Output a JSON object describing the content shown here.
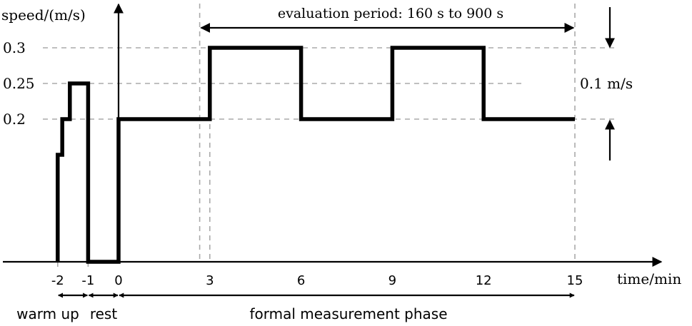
{
  "chart_data": {
    "type": "line",
    "step": true,
    "xlabel": "time/min",
    "ylabel": "speed/(m/s)",
    "xlim": [
      -3.5,
      16.5
    ],
    "ylim": [
      0,
      0.3
    ],
    "x_ticks": [
      -2,
      -1,
      0,
      3,
      6,
      9,
      12,
      15
    ],
    "x_tick_labels": [
      "-2",
      "-1",
      "0",
      "3",
      "6",
      "9",
      "12",
      "15"
    ],
    "y_ticks": [
      0.2,
      0.25,
      0.3
    ],
    "y_tick_labels": [
      "0.2",
      "0.25",
      "0.3"
    ],
    "series": [
      {
        "x": [
          -2,
          -2,
          -1.85,
          -1.85,
          -1.6,
          -1.6,
          -1.0,
          -1.0,
          0,
          0,
          3,
          3,
          6,
          6,
          9,
          9,
          12,
          12,
          15
        ],
        "y": [
          0,
          0.15,
          0.15,
          0.2,
          0.2,
          0.25,
          0.25,
          0,
          0,
          0.2,
          0.2,
          0.3,
          0.3,
          0.2,
          0.2,
          0.3,
          0.3,
          0.2,
          0.2
        ]
      }
    ],
    "grid": "dashed",
    "annotations": {
      "evaluation_period": "evaluation period: 160 s to 900 s",
      "evaluation_range": [
        2.667,
        15
      ],
      "amplitude": "0.1 m/s",
      "phases": [
        {
          "label": "warm up",
          "range": [
            -2,
            -1
          ]
        },
        {
          "label": "rest",
          "range": [
            -1,
            0
          ]
        },
        {
          "label": "formal measurement phase",
          "range": [
            0,
            15
          ]
        }
      ]
    }
  }
}
